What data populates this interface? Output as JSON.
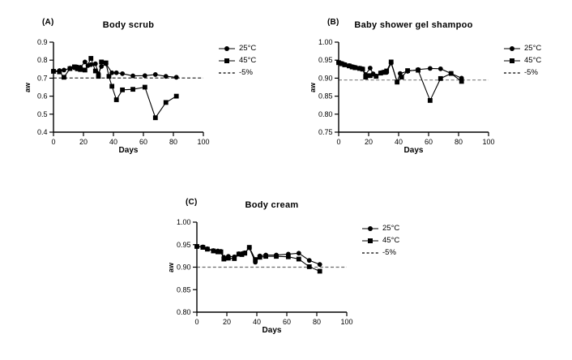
{
  "figure": {
    "background": "#ffffff",
    "axis_color": "#000000",
    "series_color": "#000000"
  },
  "legend": {
    "items": [
      {
        "label": "25°C",
        "marker": "circle"
      },
      {
        "label": "45°C",
        "marker": "square"
      },
      {
        "label": "-5%",
        "marker": "dash"
      }
    ]
  },
  "chart_data": [
    {
      "type": "line",
      "panel_label": "(A)",
      "title": "Body scrub",
      "xlabel": "Days",
      "ylabel": "aw",
      "xlim": [
        0,
        100
      ],
      "ylim": [
        0.4,
        0.9
      ],
      "xticks": [
        0,
        20,
        40,
        60,
        80,
        100
      ],
      "ytick_values": [
        0.4,
        0.5,
        0.6,
        0.7,
        0.8,
        0.9
      ],
      "ytick_labels": [
        "0.4",
        "0.5",
        "0.6",
        "0.7",
        "0.8",
        "0.9"
      ],
      "grid": false,
      "legend_position": "right",
      "threshold": {
        "label": "-5%",
        "value": 0.701,
        "color": "#1a1a1a"
      },
      "series": [
        {
          "name": "25°C",
          "marker": "circle",
          "x": [
            0,
            4,
            7,
            11,
            14,
            16,
            18,
            21,
            23,
            25,
            28,
            30,
            32,
            35,
            39,
            42,
            46,
            53,
            61,
            68,
            75,
            82
          ],
          "y": [
            0.74,
            0.742,
            0.745,
            0.755,
            0.758,
            0.762,
            0.76,
            0.79,
            0.77,
            0.775,
            0.78,
            0.725,
            0.765,
            0.78,
            0.73,
            0.73,
            0.725,
            0.713,
            0.714,
            0.72,
            0.71,
            0.705
          ]
        },
        {
          "name": "45°C",
          "marker": "square",
          "x": [
            0,
            4,
            7,
            11,
            14,
            16,
            18,
            21,
            25,
            28,
            30,
            32,
            35,
            37,
            39,
            42,
            46,
            53,
            61,
            68,
            75,
            82
          ],
          "y": [
            0.738,
            0.735,
            0.705,
            0.753,
            0.763,
            0.752,
            0.748,
            0.745,
            0.81,
            0.74,
            0.71,
            0.79,
            0.785,
            0.71,
            0.655,
            0.58,
            0.635,
            0.638,
            0.65,
            0.48,
            0.565,
            0.6
          ]
        }
      ]
    },
    {
      "type": "line",
      "panel_label": "(B)",
      "title": "Baby shower gel shampoo",
      "xlabel": "Days",
      "ylabel": "aw",
      "xlim": [
        0,
        100
      ],
      "ylim": [
        0.75,
        1.0
      ],
      "xticks": [
        0,
        20,
        40,
        60,
        80,
        100
      ],
      "ytick_values": [
        0.75,
        0.8,
        0.85,
        0.9,
        0.95,
        1.0
      ],
      "ytick_labels": [
        "0.75",
        "0.80",
        "0.85",
        "0.90",
        "0.95",
        "1.00"
      ],
      "grid": false,
      "legend_position": "right",
      "threshold": {
        "label": "-5%",
        "value": 0.895,
        "color": "#8c8c8c"
      },
      "series": [
        {
          "name": "25°C",
          "marker": "circle",
          "x": [
            0,
            2,
            4,
            7,
            9,
            11,
            14,
            16,
            18,
            21,
            23,
            25,
            28,
            30,
            32,
            35,
            39,
            41,
            46,
            53,
            61,
            68,
            75,
            82
          ],
          "y": [
            0.944,
            0.941,
            0.938,
            0.935,
            0.932,
            0.93,
            0.928,
            0.926,
            0.91,
            0.928,
            0.912,
            0.906,
            0.915,
            0.917,
            0.916,
            0.942,
            0.89,
            0.913,
            0.919,
            0.924,
            0.927,
            0.926,
            0.913,
            0.9
          ]
        },
        {
          "name": "45°C",
          "marker": "square",
          "x": [
            0,
            2,
            4,
            7,
            9,
            11,
            14,
            16,
            18,
            21,
            25,
            28,
            30,
            32,
            35,
            39,
            42,
            46,
            53,
            61,
            68,
            75,
            82
          ],
          "y": [
            0.943,
            0.94,
            0.937,
            0.934,
            0.931,
            0.929,
            0.927,
            0.925,
            0.903,
            0.907,
            0.905,
            0.914,
            0.916,
            0.92,
            0.945,
            0.889,
            0.903,
            0.921,
            0.922,
            0.838,
            0.899,
            0.913,
            0.891
          ]
        }
      ]
    },
    {
      "type": "line",
      "panel_label": "(C)",
      "title": "Body cream",
      "xlabel": "Days",
      "ylabel": "aw",
      "xlim": [
        0,
        100
      ],
      "ylim": [
        0.8,
        1.0
      ],
      "xticks": [
        0,
        20,
        40,
        60,
        80,
        100
      ],
      "ytick_values": [
        0.8,
        0.85,
        0.9,
        0.95,
        1.0
      ],
      "ytick_labels": [
        "0.80",
        "0.85",
        "0.90",
        "0.95",
        "1.00"
      ],
      "grid": false,
      "legend_position": "right",
      "threshold": {
        "label": "-5%",
        "value": 0.9,
        "color": "#6b6b6b"
      },
      "series": [
        {
          "name": "25°C",
          "marker": "circle",
          "x": [
            0,
            4,
            7,
            11,
            14,
            16,
            18,
            21,
            25,
            28,
            30,
            32,
            35,
            39,
            42,
            46,
            53,
            61,
            68,
            75,
            82
          ],
          "y": [
            0.946,
            0.945,
            0.941,
            0.937,
            0.936,
            0.935,
            0.922,
            0.924,
            0.923,
            0.93,
            0.93,
            0.932,
            0.943,
            0.911,
            0.925,
            0.927,
            0.927,
            0.929,
            0.931,
            0.915,
            0.906
          ]
        },
        {
          "name": "45°C",
          "marker": "square",
          "x": [
            0,
            4,
            7,
            11,
            14,
            16,
            18,
            21,
            25,
            28,
            30,
            32,
            35,
            39,
            42,
            46,
            53,
            61,
            68,
            75,
            82
          ],
          "y": [
            0.946,
            0.944,
            0.94,
            0.936,
            0.934,
            0.934,
            0.918,
            0.92,
            0.919,
            0.929,
            0.928,
            0.931,
            0.944,
            0.917,
            0.922,
            0.924,
            0.924,
            0.923,
            0.918,
            0.901,
            0.891
          ]
        }
      ]
    }
  ]
}
